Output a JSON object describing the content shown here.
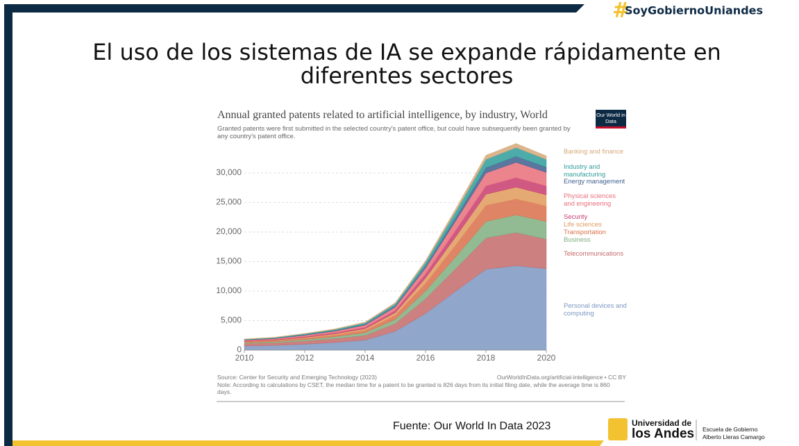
{
  "slide_title": "El uso de los sistemas de IA se expande rápidamente en diferentes sectores",
  "hashtag": "SoyGobiernoUniandes",
  "footer": {
    "source": "Fuente: Our World In Data 2023",
    "university_1": "Universidad de",
    "university_2": "los Andes",
    "school_1": "Escuela de Gobierno",
    "school_2": "Alberto Lleras Camargo"
  },
  "chart_data": {
    "type": "area",
    "title": "Annual granted patents related to artificial intelligence, by industry, World",
    "subtitle": "Granted patents were first submitted in the selected country's patent office, but could have subsequently been granted by any country's patent office.",
    "logo": "Our World in Data",
    "source": "Source: Center for Security and Emerging Technology (2023)",
    "url": "OurWorldInData.org/artificial-intelligence • CC BY",
    "note": "Note: According to calculations by CSET, the median time for a patent to be granted is 826 days from its initial filing date, while the average time is 860 days.",
    "stacked": true,
    "grid": true,
    "x": [
      2010,
      2011,
      2012,
      2013,
      2014,
      2015,
      2016,
      2017,
      2018,
      2019,
      2020
    ],
    "xlim": [
      2010,
      2020
    ],
    "xticks": [
      2010,
      2012,
      2014,
      2016,
      2018,
      2020
    ],
    "ylim": [
      0,
      35000
    ],
    "yticks": [
      0,
      {
        "value": 5000,
        "label": "5,000"
      },
      {
        "value": 10000,
        "label": "10,000"
      },
      {
        "value": 15000,
        "label": "15,000"
      },
      {
        "value": 20000,
        "label": "20,000"
      },
      {
        "value": 25000,
        "label": "25,000"
      },
      {
        "value": 30000,
        "label": "30,000"
      }
    ],
    "series": [
      {
        "name": "Personal devices and computing",
        "color": "#7d97c2",
        "values": [
          700,
          800,
          1000,
          1300,
          1700,
          3200,
          6200,
          10000,
          13700,
          14300,
          13800
        ]
      },
      {
        "name": "Telecommunications",
        "color": "#c46a6a",
        "values": [
          400,
          450,
          550,
          650,
          800,
          1300,
          2500,
          3800,
          5300,
          5600,
          5000
        ]
      },
      {
        "name": "Business",
        "color": "#7fae80",
        "values": [
          150,
          180,
          250,
          330,
          450,
          700,
          1300,
          2000,
          2800,
          3000,
          3000
        ]
      },
      {
        "name": "Transportation",
        "color": "#d9704a",
        "values": [
          120,
          140,
          200,
          280,
          400,
          700,
          1300,
          2000,
          2700,
          2700,
          2600
        ]
      },
      {
        "name": "Life sciences",
        "color": "#e09a5c",
        "values": [
          100,
          110,
          150,
          200,
          280,
          450,
          900,
          1400,
          1900,
          2000,
          1900
        ]
      },
      {
        "name": "Security",
        "color": "#c83c6e",
        "values": [
          80,
          100,
          120,
          160,
          220,
          360,
          700,
          1100,
          1400,
          1600,
          1500
        ]
      },
      {
        "name": "Physical sciences and engineering",
        "color": "#e96f7a",
        "values": [
          150,
          170,
          250,
          300,
          400,
          600,
          1000,
          1600,
          2200,
          2600,
          2300
        ]
      },
      {
        "name": "Energy management",
        "color": "#3e5f8f",
        "values": [
          50,
          60,
          80,
          100,
          120,
          200,
          350,
          550,
          900,
          1000,
          900
        ]
      },
      {
        "name": "Industry and manufacturing",
        "color": "#2e9c9a",
        "values": [
          80,
          100,
          150,
          180,
          250,
          350,
          600,
          1000,
          1400,
          1500,
          1300
        ]
      },
      {
        "name": "Banking and finance",
        "color": "#d6a878",
        "values": [
          60,
          70,
          80,
          100,
          130,
          200,
          300,
          500,
          700,
          700,
          600
        ]
      }
    ]
  }
}
